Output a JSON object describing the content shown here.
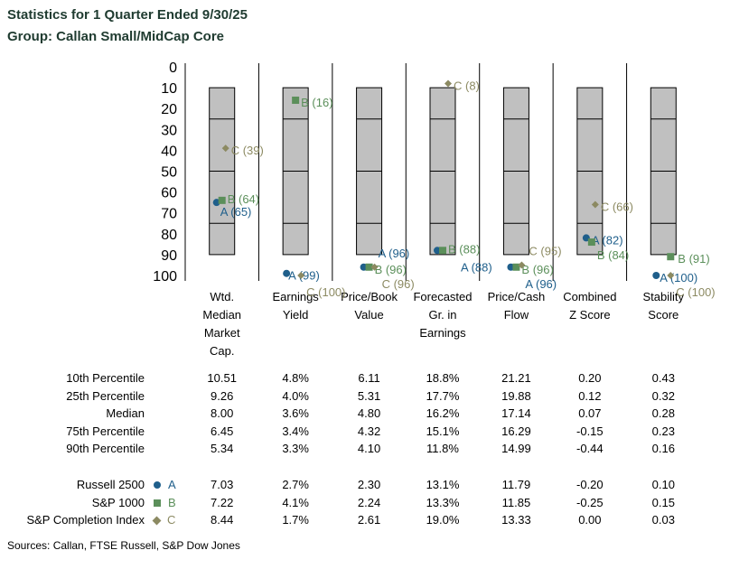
{
  "header": {
    "title": "Statistics for 1 Quarter Ended 9/30/25",
    "group": "Group: Callan Small/MidCap Core"
  },
  "colors": {
    "A": "#1f5f8b",
    "B": "#5b8f5a",
    "C": "#8c8a62",
    "box": "#c0c0c0"
  },
  "chart_data": {
    "type": "floating-bar-percentile",
    "title": "Statistics for 1 Quarter Ended 9/30/25",
    "subtitle": "Group: Callan Small/MidCap Core",
    "yaxis": {
      "ticks": [
        "0",
        "10",
        "20",
        "30",
        "40",
        "50",
        "60",
        "70",
        "80",
        "90",
        "100"
      ],
      "range": [
        0,
        100
      ],
      "inverted": true
    },
    "categories": [
      [
        "Wtd.",
        "Median",
        "Market",
        "Cap."
      ],
      [
        "Earnings",
        "Yield"
      ],
      [
        "Price/Book",
        "Value"
      ],
      [
        "Forecasted",
        "Gr. in",
        "Earnings"
      ],
      [
        "Price/Cash",
        "Flow"
      ],
      [
        "Combined",
        "Z Score"
      ],
      [
        "Stability",
        "Score"
      ]
    ],
    "box_percentiles": [
      10,
      25,
      50,
      75,
      90
    ],
    "series": [
      {
        "key": "A",
        "name": "Russell 2500",
        "marker": "circle",
        "ranks": [
          65,
          99,
          96,
          88,
          96,
          82,
          100
        ],
        "labels": [
          "A (65)",
          "A (99)",
          "A (96)",
          "A (88)",
          "A (96)",
          "A (82)",
          "A (100)"
        ]
      },
      {
        "key": "B",
        "name": "S&P 1000",
        "marker": "square",
        "ranks": [
          64,
          16,
          96,
          88,
          96,
          84,
          91
        ],
        "labels": [
          "B (64)",
          "B (16)",
          "B (96)",
          "B (88)",
          "B (96)",
          "B (84)",
          "B (91)"
        ]
      },
      {
        "key": "C",
        "name": "S&P Completion Index",
        "marker": "diamond",
        "ranks": [
          39,
          100,
          96,
          8,
          95,
          66,
          100
        ],
        "labels": [
          "C (39)",
          "C (100)",
          "C (96)",
          "C (8)",
          "C (95)",
          "C (66)",
          "C (100)"
        ]
      }
    ]
  },
  "table": {
    "percentile_rows": [
      {
        "label": "10th Percentile",
        "values": [
          "10.51",
          "4.8%",
          "6.11",
          "18.8%",
          "21.21",
          "0.20",
          "0.43"
        ]
      },
      {
        "label": "25th Percentile",
        "values": [
          "9.26",
          "4.0%",
          "5.31",
          "17.7%",
          "19.88",
          "0.12",
          "0.32"
        ]
      },
      {
        "label": "Median",
        "values": [
          "8.00",
          "3.6%",
          "4.80",
          "16.2%",
          "17.14",
          "0.07",
          "0.28"
        ]
      },
      {
        "label": "75th Percentile",
        "values": [
          "6.45",
          "3.4%",
          "4.32",
          "15.1%",
          "16.29",
          "-0.15",
          "0.23"
        ]
      },
      {
        "label": "90th Percentile",
        "values": [
          "5.34",
          "3.3%",
          "4.10",
          "11.8%",
          "14.99",
          "-0.44",
          "0.16"
        ]
      }
    ],
    "index_rows": [
      {
        "label": "Russell 2500",
        "key": "A",
        "values": [
          "7.03",
          "2.7%",
          "2.30",
          "13.1%",
          "11.79",
          "-0.20",
          "0.10"
        ]
      },
      {
        "label": "S&P 1000",
        "key": "B",
        "values": [
          "7.22",
          "4.1%",
          "2.24",
          "13.3%",
          "11.85",
          "-0.25",
          "0.15"
        ]
      },
      {
        "label": "S&P Completion Index",
        "key": "C",
        "values": [
          "8.44",
          "1.7%",
          "2.61",
          "19.0%",
          "13.33",
          "0.00",
          "0.03"
        ]
      }
    ]
  },
  "footer": {
    "sources": "Sources: Callan, FTSE Russell, S&P Dow Jones"
  }
}
